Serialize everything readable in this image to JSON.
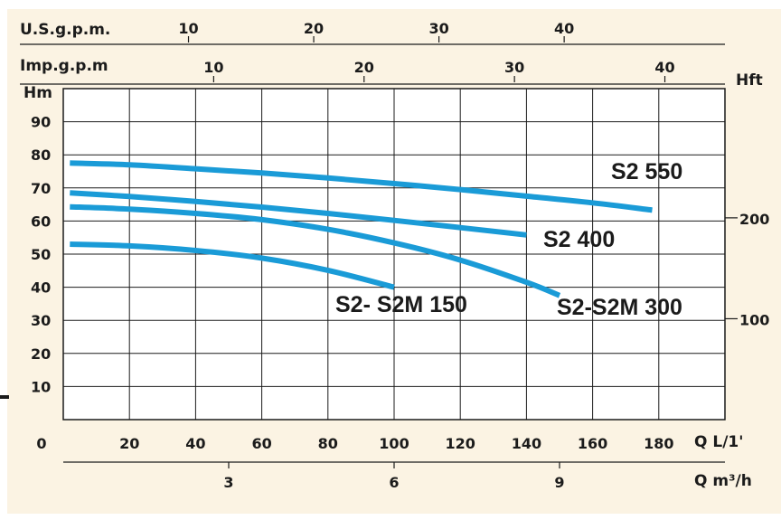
{
  "chart_data": {
    "type": "line",
    "x": {
      "label": "Q L/1'",
      "ticks": [
        0,
        20,
        40,
        60,
        80,
        100,
        120,
        140,
        160,
        180
      ],
      "range": [
        0,
        200
      ]
    },
    "y": {
      "label": "Hm",
      "ticks": [
        10,
        20,
        30,
        40,
        50,
        60,
        70,
        80,
        90
      ],
      "range": [
        0,
        100
      ]
    },
    "secondary_axes": {
      "usgpm": {
        "label": "U.S.g.p.m.",
        "ticks": [
          10,
          20,
          30,
          40
        ]
      },
      "impgpm": {
        "label": "Imp.g.p.m",
        "ticks": [
          10,
          20,
          30,
          40
        ]
      },
      "m3h": {
        "label": "Q m³/h",
        "ticks": [
          3,
          6,
          9
        ]
      },
      "hft": {
        "label": "Hft",
        "ticks": [
          100,
          200
        ]
      }
    },
    "series": [
      {
        "name": "S2 550",
        "x": [
          2,
          20,
          40,
          60,
          80,
          100,
          120,
          140,
          160,
          178
        ],
        "y": [
          77.5,
          77,
          75.8,
          74.5,
          73,
          71.3,
          69.5,
          67.5,
          65.5,
          63.3
        ]
      },
      {
        "name": "S2 400",
        "x": [
          2,
          20,
          40,
          60,
          80,
          100,
          120,
          140
        ],
        "y": [
          68.5,
          67.4,
          65.9,
          64.2,
          62.3,
          60.2,
          58,
          55.8
        ]
      },
      {
        "name": "S2-S2M 300",
        "x": [
          2,
          20,
          40,
          60,
          80,
          100,
          120,
          140,
          150
        ],
        "y": [
          64.3,
          63.6,
          62.3,
          60.4,
          57.5,
          53.4,
          48.2,
          41.5,
          37.5
        ]
      },
      {
        "name": "S2- S2M 150",
        "x": [
          2,
          20,
          40,
          60,
          80,
          100
        ],
        "y": [
          53,
          52.5,
          51.1,
          48.8,
          45.1,
          40
        ]
      }
    ],
    "grid": true,
    "colors": {
      "curve": "#1a9bd7",
      "background": "#fbf3e3",
      "grid": "#1b1b1b"
    }
  }
}
